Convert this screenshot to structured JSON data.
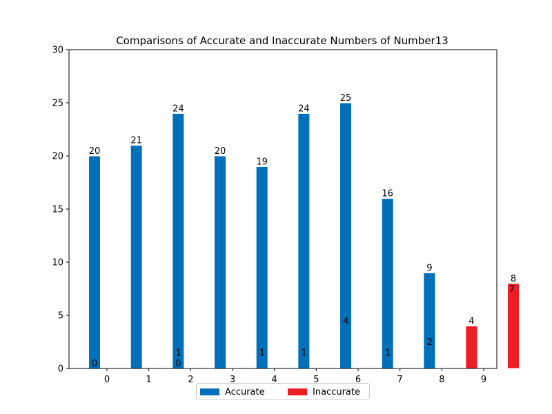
{
  "chart_data": {
    "type": "bar",
    "title": "Comparisons of Accurate and Inaccurate Numbers of Number13",
    "categories": [
      "0",
      "1",
      "2",
      "3",
      "4",
      "5",
      "6",
      "7",
      "8",
      "9"
    ],
    "series": [
      {
        "name": "Accurate",
        "color": "#0070bb",
        "values": [
          20,
          21,
          24,
          20,
          19,
          24,
          25,
          16,
          9,
          0
        ]
      },
      {
        "name": "Inaccurate",
        "color": "#ee1c25",
        "values": [
          0,
          1,
          0,
          1,
          1,
          4,
          1,
          2,
          4,
          8
        ]
      }
    ],
    "extra_labels": [
      {
        "category": "9",
        "text": "7"
      }
    ],
    "ylim": [
      0,
      30
    ],
    "yticks": [
      0,
      5,
      10,
      15,
      20,
      25,
      30
    ],
    "xlabel": "",
    "ylabel": "",
    "grid": false,
    "legend_position": "bottom-center"
  }
}
